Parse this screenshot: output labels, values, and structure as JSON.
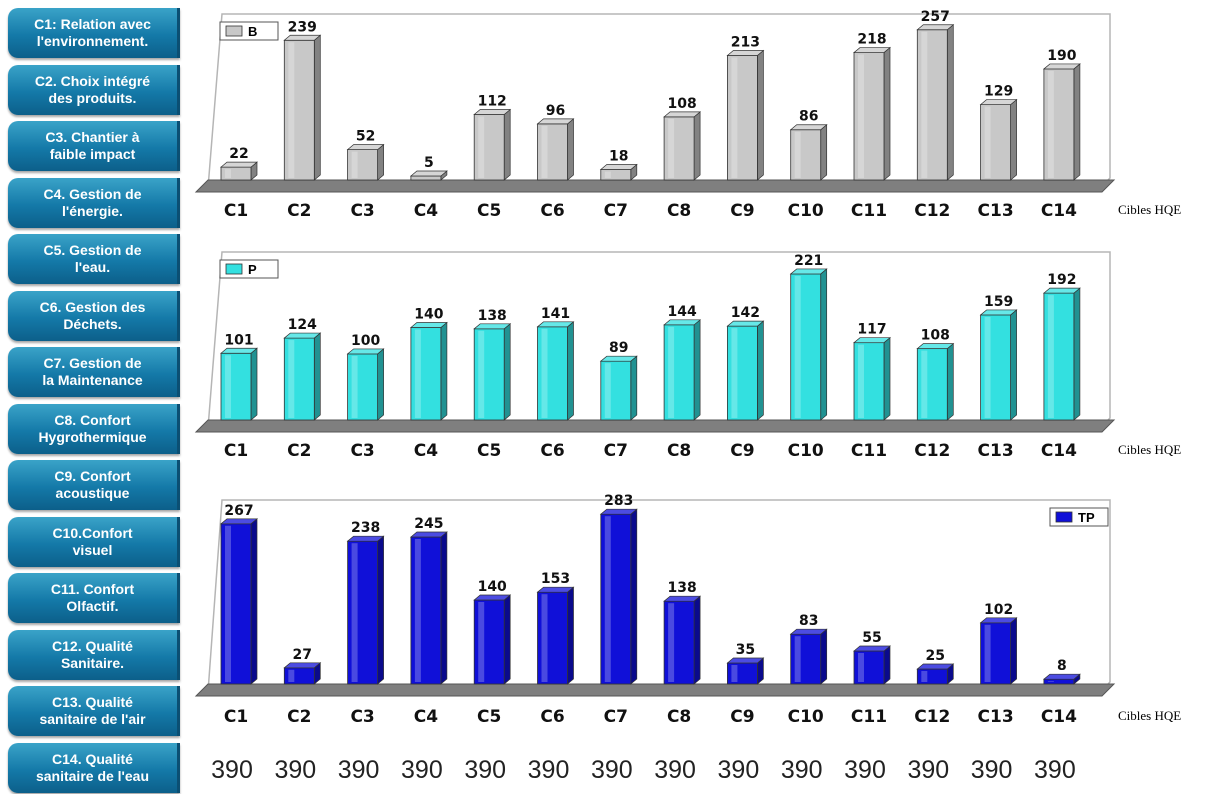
{
  "targets": [
    "C1: Relation avec\nl'environnement.",
    "C2. Choix intégré\ndes produits.",
    "C3. Chantier à\nfaible impact",
    "C4. Gestion de\nl'énergie.",
    "C5. Gestion de\nl'eau.",
    "C6. Gestion des\nDéchets.",
    "C7. Gestion de\nla Maintenance",
    "C8. Confort\nHygrothermique",
    "C9. Confort\nacoustique",
    "C10.Confort\nvisuel",
    "C11. Confort\nOlfactif.",
    "C12. Qualité\nSanitaire.",
    "C13. Qualité\nsanitaire de l'air",
    "C14. Qualité\nsanitaire de l'eau"
  ],
  "chart_data": [
    {
      "type": "bar",
      "categories": [
        "C1",
        "C2",
        "C3",
        "C4",
        "C5",
        "C6",
        "C7",
        "C8",
        "C9",
        "C10",
        "C11",
        "C12",
        "C13",
        "C14"
      ],
      "series": [
        {
          "name": "B",
          "values": [
            22,
            239,
            52,
            5,
            112,
            96,
            18,
            108,
            213,
            86,
            218,
            257,
            129,
            190
          ],
          "color": "#c8c8c8"
        }
      ],
      "xlabel": "Cibles HQE",
      "legend": "top-left",
      "ylim": [
        0,
        260
      ]
    },
    {
      "type": "bar",
      "categories": [
        "C1",
        "C2",
        "C3",
        "C4",
        "C5",
        "C6",
        "C7",
        "C8",
        "C9",
        "C10",
        "C11",
        "C12",
        "C13",
        "C14"
      ],
      "series": [
        {
          "name": "P",
          "values": [
            101,
            124,
            100,
            140,
            138,
            141,
            89,
            144,
            142,
            221,
            117,
            108,
            159,
            192
          ],
          "color": "#33e0e0"
        }
      ],
      "xlabel": "Cibles HQE",
      "legend": "top-left",
      "ylim": [
        0,
        230
      ]
    },
    {
      "type": "bar",
      "categories": [
        "C1",
        "C2",
        "C3",
        "C4",
        "C5",
        "C6",
        "C7",
        "C8",
        "C9",
        "C10",
        "C11",
        "C12",
        "C13",
        "C14"
      ],
      "series": [
        {
          "name": "TP",
          "values": [
            267,
            27,
            238,
            245,
            140,
            153,
            283,
            138,
            35,
            83,
            55,
            25,
            102,
            8
          ],
          "color": "#1010d8"
        }
      ],
      "xlabel": "Cibles HQE",
      "legend": "top-right",
      "ylim": [
        0,
        290
      ]
    }
  ],
  "totals": [
    "390",
    "390",
    "390",
    "390",
    "390",
    "390",
    "390",
    "390",
    "390",
    "390",
    "390",
    "390",
    "390",
    "390"
  ]
}
